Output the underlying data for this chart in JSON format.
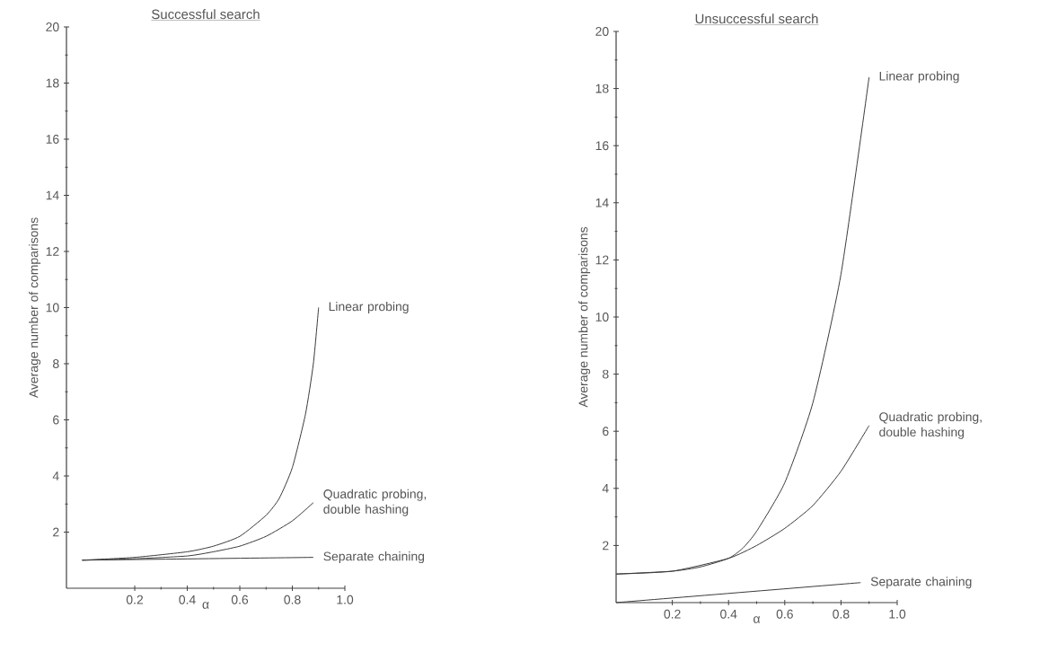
{
  "chart_data": [
    {
      "type": "line",
      "title": "Successful search",
      "xlabel": "α",
      "ylabel": "Average number of comparisons",
      "xlim": [
        -0.06,
        1
      ],
      "ylim": [
        0,
        20
      ],
      "xticks": [
        0.2,
        0.4,
        0.6,
        0.8,
        {
          "value": 1,
          "label": "1.0"
        }
      ],
      "yticks": [
        2,
        4,
        6,
        8,
        10,
        12,
        14,
        16,
        18,
        20
      ],
      "grid": false,
      "marker": "none",
      "line_style": "solid",
      "series": [
        {
          "name": "Linear probing",
          "color": "#3a3a3a",
          "x": [
            0,
            0.2,
            0.4,
            0.5,
            0.6,
            0.7,
            0.75,
            0.8,
            0.85,
            0.88,
            0.9
          ],
          "values": [
            1,
            1.1,
            1.3,
            1.5,
            1.85,
            2.6,
            3.2,
            4.3,
            6.2,
            8,
            10
          ]
        },
        {
          "name": "Quadratic probing, double hashing",
          "color": "#3a3a3a",
          "x": [
            0,
            0.2,
            0.4,
            0.5,
            0.6,
            0.7,
            0.8,
            0.88
          ],
          "values": [
            1,
            1.05,
            1.15,
            1.3,
            1.5,
            1.85,
            2.4,
            3.05
          ]
        },
        {
          "name": "Separate chaining",
          "color": "#3a3a3a",
          "x": [
            0,
            0.88
          ],
          "values": [
            1,
            1.1
          ]
        }
      ]
    },
    {
      "type": "line",
      "title": "Unsuccessful search",
      "xlabel": "α",
      "ylabel": "Average number of comparisons",
      "xlim": [
        0,
        1
      ],
      "ylim": [
        0,
        20
      ],
      "xticks": [
        0.2,
        0.4,
        0.6,
        0.8,
        {
          "value": 1,
          "label": "1.0"
        }
      ],
      "yticks": [
        2,
        4,
        6,
        8,
        10,
        12,
        14,
        16,
        18,
        20
      ],
      "grid": false,
      "marker": "none",
      "line_style": "solid",
      "series": [
        {
          "name": "Linear probing",
          "color": "#3a3a3a",
          "x": [
            0,
            0.2,
            0.3,
            0.4,
            0.45,
            0.5,
            0.6,
            0.7,
            0.8,
            0.9
          ],
          "values": [
            1,
            1.1,
            1.25,
            1.55,
            1.9,
            2.5,
            4.2,
            7,
            11.5,
            18.4
          ]
        },
        {
          "name": "Quadratic probing, double hashing",
          "color": "#3a3a3a",
          "x": [
            0,
            0.2,
            0.4,
            0.5,
            0.6,
            0.7,
            0.8,
            0.9
          ],
          "values": [
            1,
            1.1,
            1.55,
            2,
            2.6,
            3.4,
            4.6,
            6.2
          ]
        },
        {
          "name": "Separate chaining",
          "color": "#3a3a3a",
          "x": [
            0,
            0.87
          ],
          "values": [
            0,
            0.7
          ]
        }
      ]
    }
  ]
}
